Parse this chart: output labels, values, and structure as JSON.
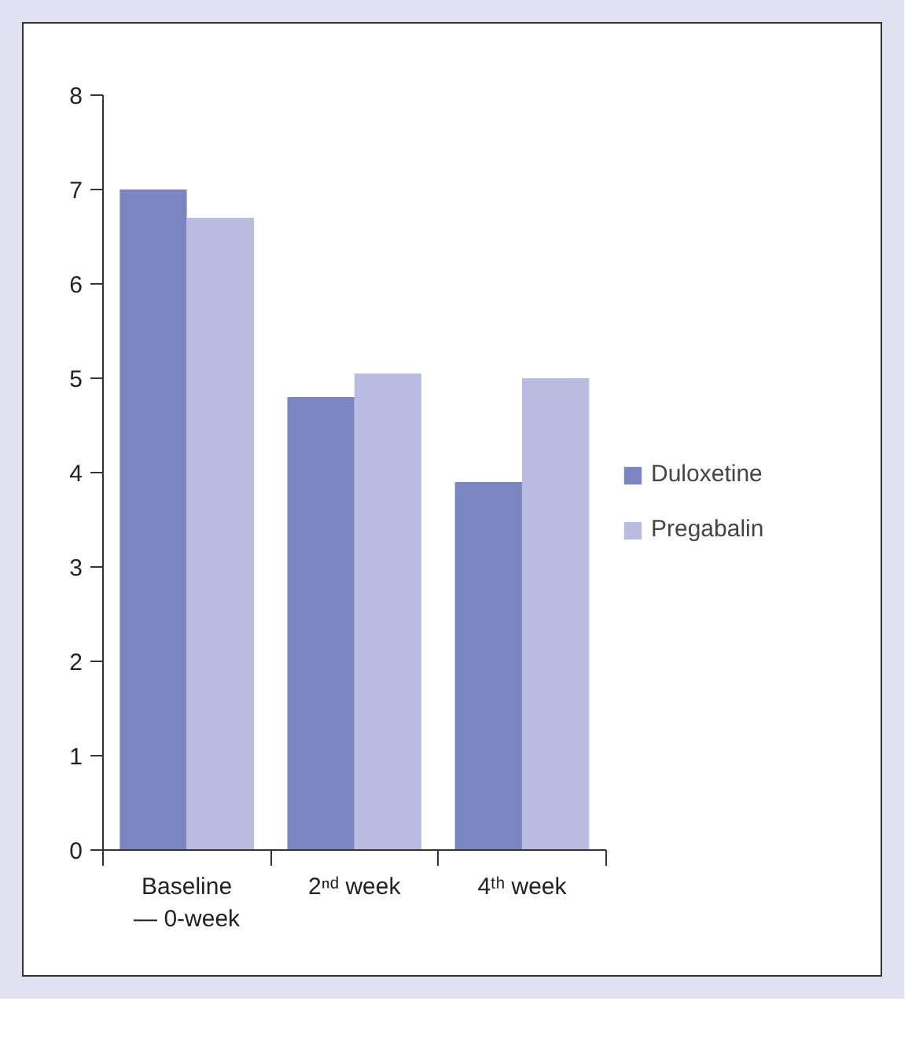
{
  "chart_data": {
    "type": "bar",
    "categories": [
      "Baseline\n— 0-week",
      "2ⁿᵈ week",
      "4ᵗʰ week"
    ],
    "series": [
      {
        "name": "Duloxetine",
        "color": "#7b86c1",
        "values": [
          7.0,
          4.8,
          3.9
        ]
      },
      {
        "name": "Pregabalin",
        "color": "#babde1",
        "values": [
          6.7,
          5.05,
          5.0
        ]
      }
    ],
    "ylim": [
      0,
      8
    ],
    "yticks": [
      0,
      1,
      2,
      3,
      4,
      5,
      6,
      7,
      8
    ],
    "grid": false,
    "legend": "right"
  }
}
